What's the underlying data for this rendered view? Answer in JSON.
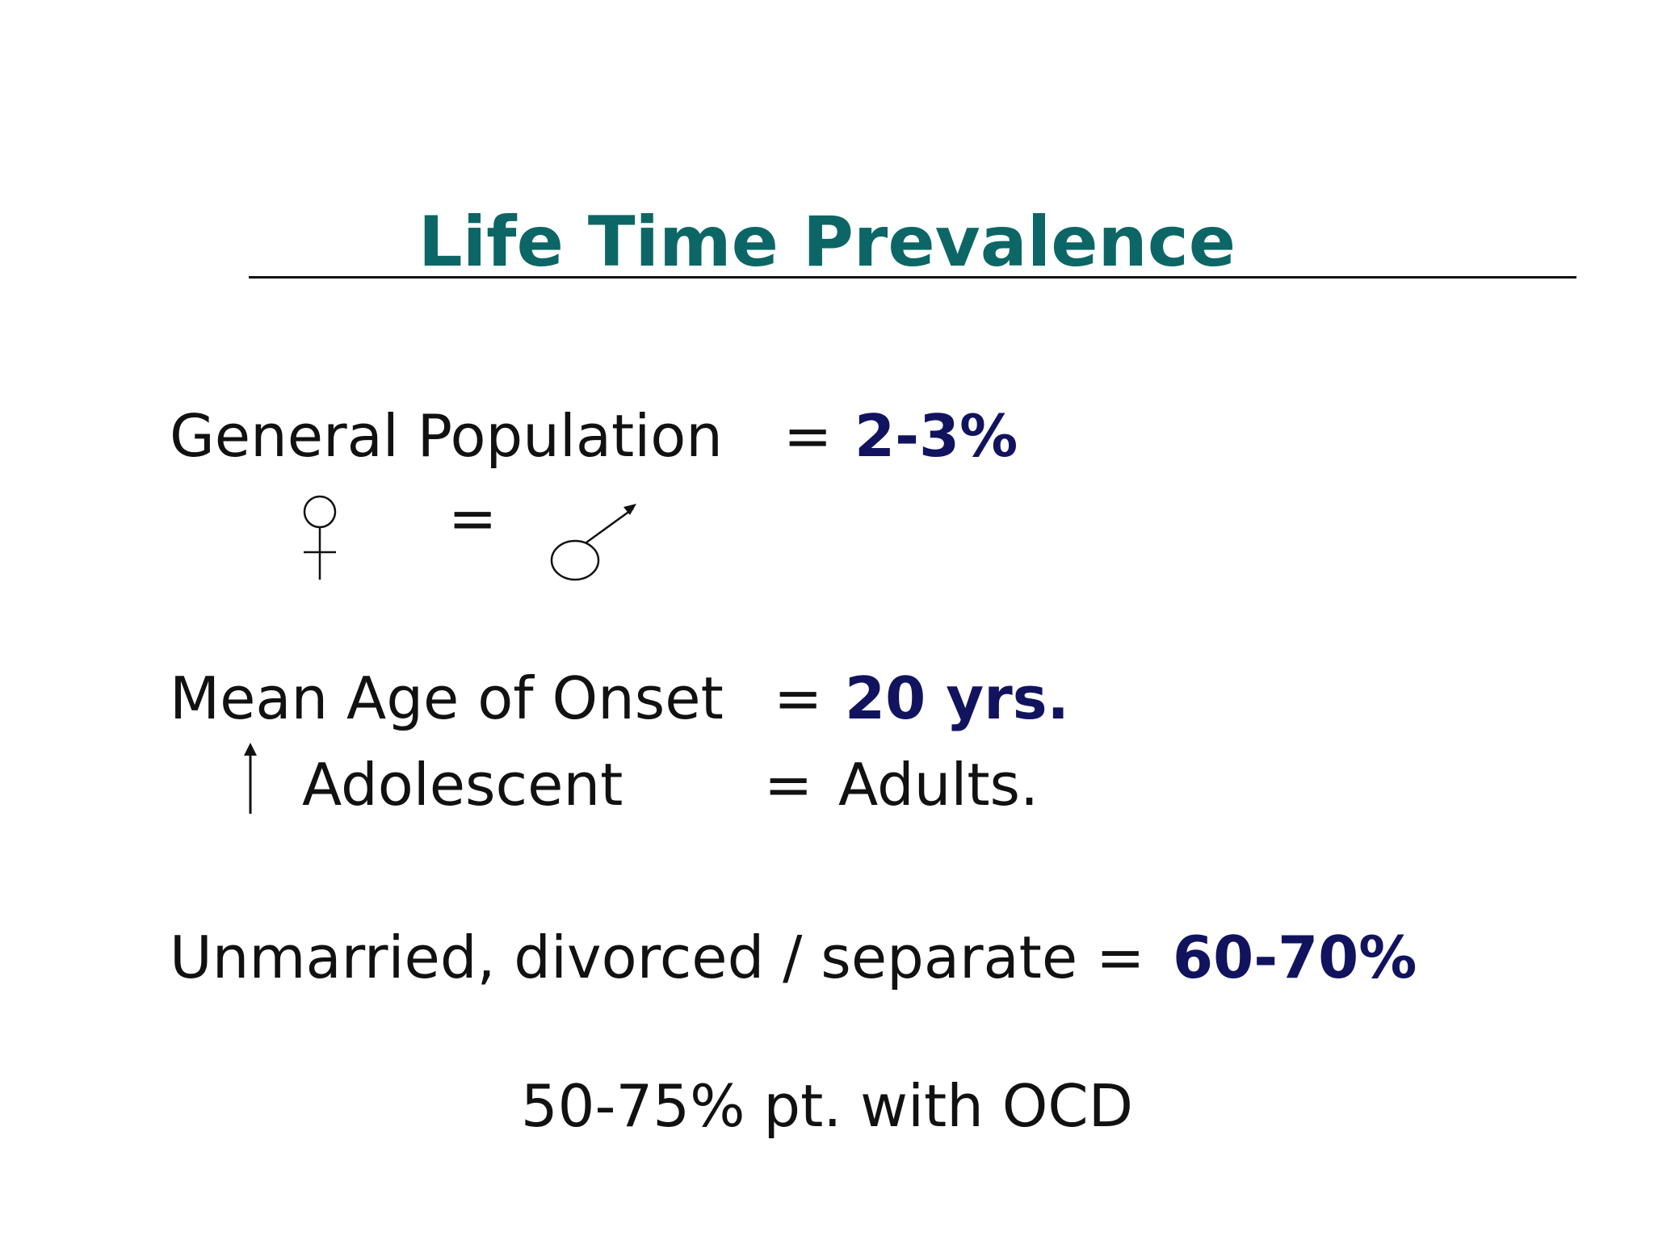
{
  "slide": {
    "title": "Life Time Prevalence",
    "rows": {
      "general_population": {
        "label": "General Population",
        "equals": "=",
        "value": "2-3%"
      },
      "sex_ratio": {
        "left_symbol": "female-symbol-icon",
        "equals": "=",
        "right_symbol": "male-symbol-icon"
      },
      "mean_age": {
        "label": "Mean Age of Onset",
        "equals": "=",
        "value": "20 yrs."
      },
      "adolescent": {
        "symbol": "up-arrow-icon",
        "label": "Adolescent",
        "equals": "=",
        "value": "Adults."
      },
      "marital": {
        "label": "Unmarried, divorced / separate =",
        "value": "60-70%"
      }
    },
    "footnote": "50-75% pt. with OCD"
  },
  "colors": {
    "title": "#0d6666",
    "emphasis": "#12135f",
    "text": "#111111"
  }
}
